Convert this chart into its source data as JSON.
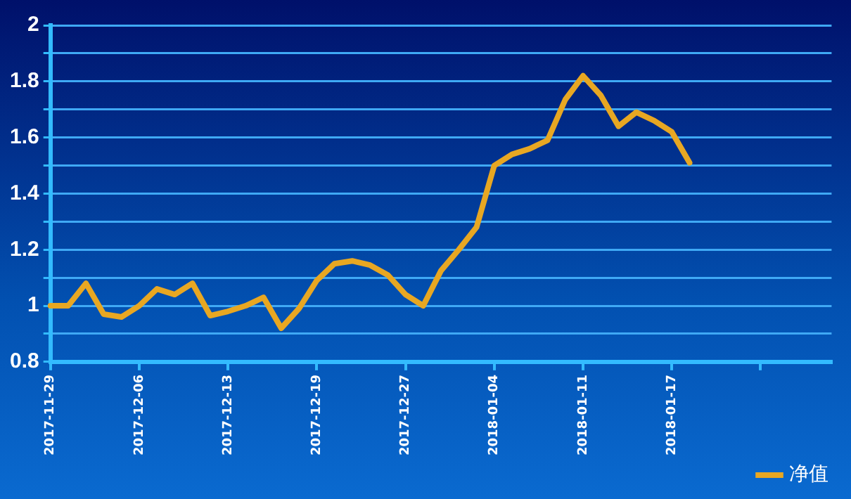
{
  "chart_data": {
    "type": "line",
    "categories": [
      "2017-11-29",
      null,
      null,
      null,
      null,
      "2017-12-06",
      null,
      null,
      null,
      null,
      "2017-12-13",
      null,
      null,
      null,
      null,
      "2017-12-19",
      null,
      null,
      null,
      null,
      "2017-12-27",
      null,
      null,
      null,
      null,
      "2018-01-04",
      null,
      null,
      null,
      null,
      "2018-01-11",
      null,
      null,
      null,
      null,
      "2018-01-17",
      null,
      null,
      null,
      null,
      null,
      null,
      null,
      null,
      null
    ],
    "series": [
      {
        "name": "净值",
        "color": "#e8a722",
        "values": [
          1.0,
          1.0,
          1.08,
          0.97,
          0.96,
          1.0,
          1.06,
          1.04,
          1.08,
          0.965,
          0.98,
          1.0,
          1.03,
          0.92,
          0.99,
          1.09,
          1.15,
          1.16,
          1.145,
          1.11,
          1.04,
          1.0,
          1.125,
          1.2,
          1.28,
          1.5,
          1.54,
          1.56,
          1.59,
          1.735,
          1.82,
          1.75,
          1.64,
          1.69,
          1.66,
          1.62,
          1.51,
          null,
          null,
          null,
          null,
          null,
          null,
          null,
          null
        ]
      }
    ],
    "ylim": [
      0.8,
      2
    ],
    "yticks": [
      0.8,
      {
        "value": 0.9,
        "label": null
      },
      1,
      {
        "value": 1.1,
        "label": null
      },
      1.2,
      {
        "value": 1.3,
        "label": null
      },
      1.4,
      {
        "value": 1.5,
        "label": null
      },
      1.6,
      {
        "value": 1.7,
        "label": null
      },
      1.8,
      {
        "value": 1.9,
        "label": null
      },
      2
    ],
    "grid": "y",
    "legend": "bottom right",
    "marker": "none",
    "line_style": "solid"
  }
}
